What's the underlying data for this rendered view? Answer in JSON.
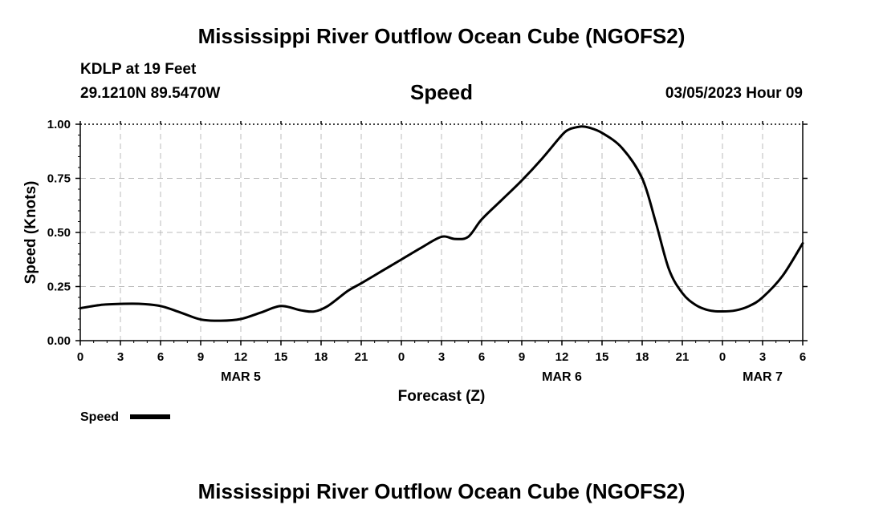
{
  "page": {
    "title_top": "Mississippi River Outflow Ocean Cube (NGOFS2)",
    "title_bottom": "Mississippi River Outflow Ocean Cube (NGOFS2)",
    "station": "KDLP at 19 Feet",
    "coords": "29.1210N  89.5470W",
    "panel_title": "Speed",
    "datetime": "03/05/2023 Hour 09"
  },
  "chart_data": {
    "type": "line",
    "title": "Speed",
    "xlabel": "Forecast (Z)",
    "ylabel": "Speed (Knots)",
    "xlim": [
      0,
      54
    ],
    "ylim": [
      0,
      1
    ],
    "x_ticks": [
      0,
      3,
      6,
      9,
      12,
      15,
      18,
      21,
      24,
      27,
      30,
      33,
      36,
      39,
      42,
      45,
      48,
      51,
      54
    ],
    "x_tick_labels": [
      "0",
      "3",
      "6",
      "9",
      "12",
      "15",
      "18",
      "21",
      "0",
      "3",
      "6",
      "9",
      "12",
      "15",
      "18",
      "21",
      "0",
      "3",
      "6"
    ],
    "date_labels": [
      {
        "label": "MAR 5",
        "x": 12
      },
      {
        "label": "MAR 6",
        "x": 36
      },
      {
        "label": "MAR 7",
        "x": 51
      }
    ],
    "y_ticks": [
      0,
      0.25,
      0.5,
      0.75,
      1.0
    ],
    "y_tick_labels": [
      "0.00",
      "0.25",
      "0.50",
      "0.75",
      "1.00"
    ],
    "grid": true,
    "legend": {
      "placement": "bottom-left",
      "label": "Speed"
    },
    "series": [
      {
        "name": "Speed",
        "color": "#000000",
        "x": [
          0,
          1.5,
          3,
          4.5,
          6,
          7.5,
          9,
          10.5,
          12,
          13.5,
          15,
          16.5,
          17.5,
          18.5,
          20,
          21,
          22.5,
          24,
          25.5,
          27,
          28,
          29,
          30,
          31.5,
          33,
          34.5,
          36,
          36.5,
          37,
          37.5,
          38,
          39,
          40.5,
          42,
          43,
          44,
          45,
          46,
          47,
          48,
          49,
          50,
          51,
          52.5,
          54
        ],
        "y": [
          0.15,
          0.165,
          0.17,
          0.17,
          0.16,
          0.13,
          0.098,
          0.092,
          0.1,
          0.13,
          0.16,
          0.14,
          0.135,
          0.16,
          0.23,
          0.265,
          0.32,
          0.375,
          0.43,
          0.48,
          0.47,
          0.48,
          0.56,
          0.65,
          0.74,
          0.84,
          0.95,
          0.975,
          0.985,
          0.99,
          0.985,
          0.96,
          0.89,
          0.75,
          0.55,
          0.33,
          0.22,
          0.165,
          0.14,
          0.135,
          0.14,
          0.16,
          0.2,
          0.3,
          0.45
        ]
      }
    ]
  }
}
